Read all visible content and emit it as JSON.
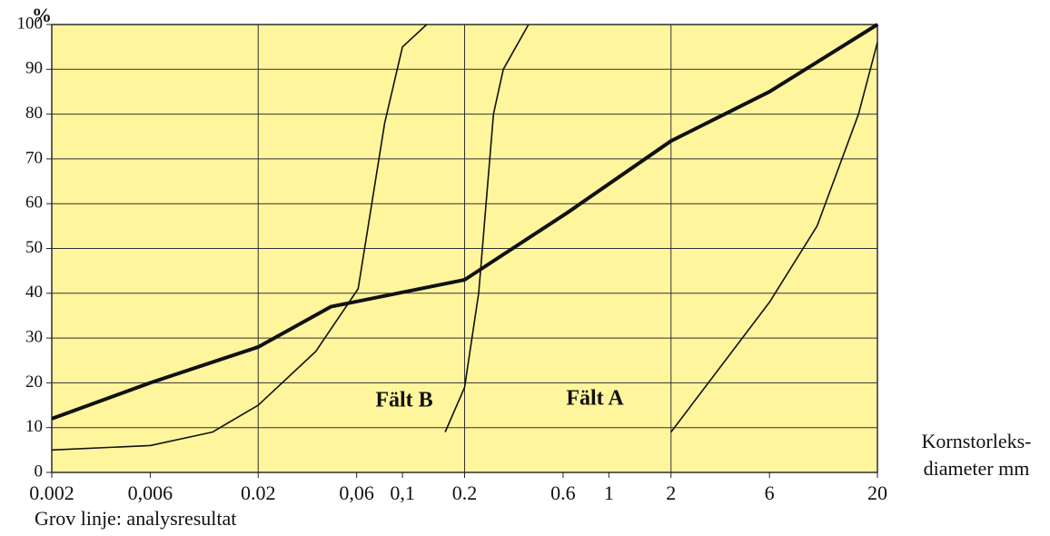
{
  "chart_data": {
    "type": "line",
    "y_label": "%",
    "x_label": [
      "Kornstorleks-",
      "diameter mm"
    ],
    "note": "Grov linje: analysresultat",
    "annotations": [
      "Fält B",
      "Fält A"
    ],
    "log_x": true,
    "grid": true,
    "background": "#fff59d",
    "xlim": [
      0.002,
      20
    ],
    "ylim": [
      0,
      100
    ],
    "xticks": [
      0.002,
      {
        "value": 0.006,
        "label": "0,006"
      },
      0.02,
      {
        "value": 0.06,
        "label": "0,06"
      },
      {
        "value": 0.1,
        "label": "0,1"
      },
      0.2,
      0.6,
      1,
      2,
      6,
      20
    ],
    "xgrid": [
      0.002,
      0.02,
      0.2,
      2,
      20
    ],
    "yticks": [
      0,
      10,
      20,
      30,
      40,
      50,
      60,
      70,
      80,
      90,
      100
    ],
    "series": [
      {
        "color": "#111",
        "width": 4,
        "x": [
          0.002,
          0.006,
          0.02,
          0.045,
          0.2,
          0.63,
          2,
          6,
          20
        ],
        "values": [
          12,
          20,
          28,
          37,
          43,
          58,
          74,
          85,
          100
        ]
      },
      {
        "color": "#111",
        "width": 1.6,
        "x": [
          0.002,
          0.006,
          0.012,
          0.02,
          0.038,
          0.061,
          0.082,
          0.1,
          0.131
        ],
        "values": [
          5,
          6,
          9,
          15,
          27,
          41,
          78,
          95,
          100
        ]
      },
      {
        "color": "#111",
        "width": 1.6,
        "x": [
          0.161,
          0.2,
          0.234,
          0.276,
          0.308,
          0.408
        ],
        "values": [
          9,
          19,
          40,
          80,
          90,
          100
        ]
      },
      {
        "color": "#111",
        "width": 1.6,
        "x": [
          2,
          6,
          10.2,
          16.2,
          20
        ],
        "values": [
          9,
          38,
          55,
          80,
          96
        ]
      }
    ]
  }
}
